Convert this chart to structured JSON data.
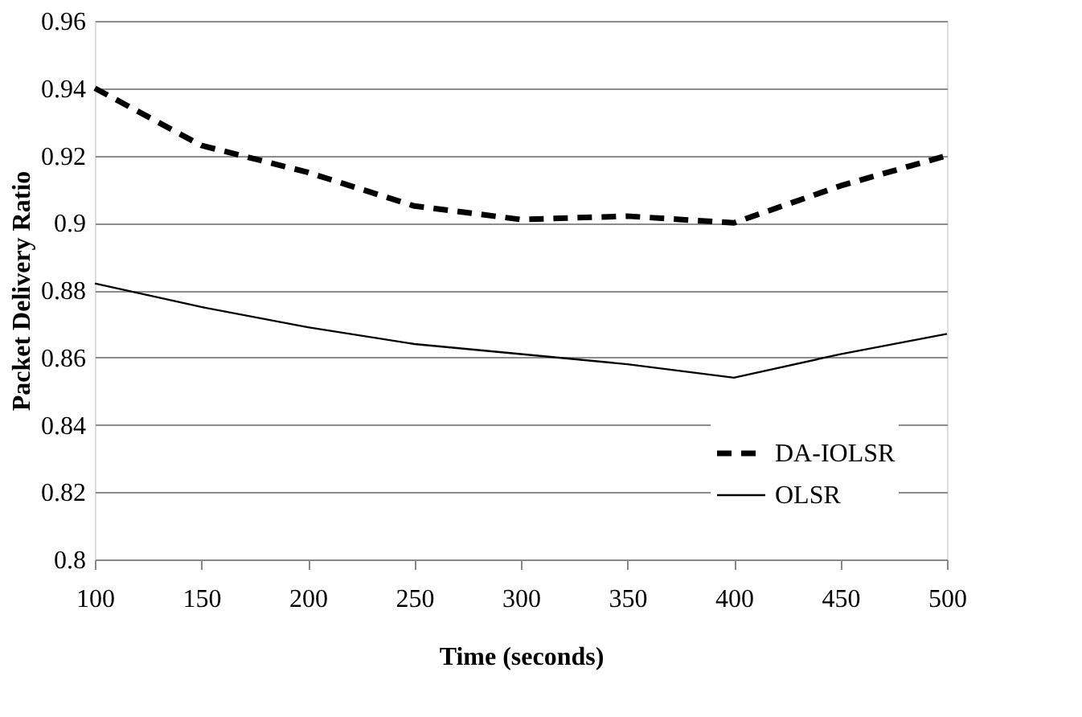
{
  "chart_data": {
    "type": "line",
    "xlabel": "Time (seconds)",
    "ylabel": "Packet Delivery Ratio",
    "x": [
      100,
      150,
      200,
      250,
      300,
      350,
      400,
      450,
      500
    ],
    "series": [
      {
        "name": "DA-IOLSR",
        "color": "#000000",
        "line_style": "dashed",
        "values": [
          0.94,
          0.923,
          0.915,
          0.905,
          0.901,
          0.902,
          0.9,
          0.911,
          0.92
        ]
      },
      {
        "name": "OLSR",
        "color": "#000000",
        "line_style": "solid",
        "values": [
          0.882,
          0.875,
          0.869,
          0.864,
          0.861,
          0.858,
          0.854,
          0.861,
          0.867
        ]
      }
    ],
    "xlim": [
      100,
      500
    ],
    "xticks": [
      100,
      150,
      200,
      250,
      300,
      350,
      400,
      450,
      500
    ],
    "ylim": [
      0.8,
      0.96
    ],
    "yticks": [
      0.8,
      0.82,
      0.84,
      0.86,
      0.88,
      0.9,
      0.92,
      0.94,
      0.96
    ],
    "grid": "y",
    "legend": "bottom right",
    "marker": "none"
  }
}
